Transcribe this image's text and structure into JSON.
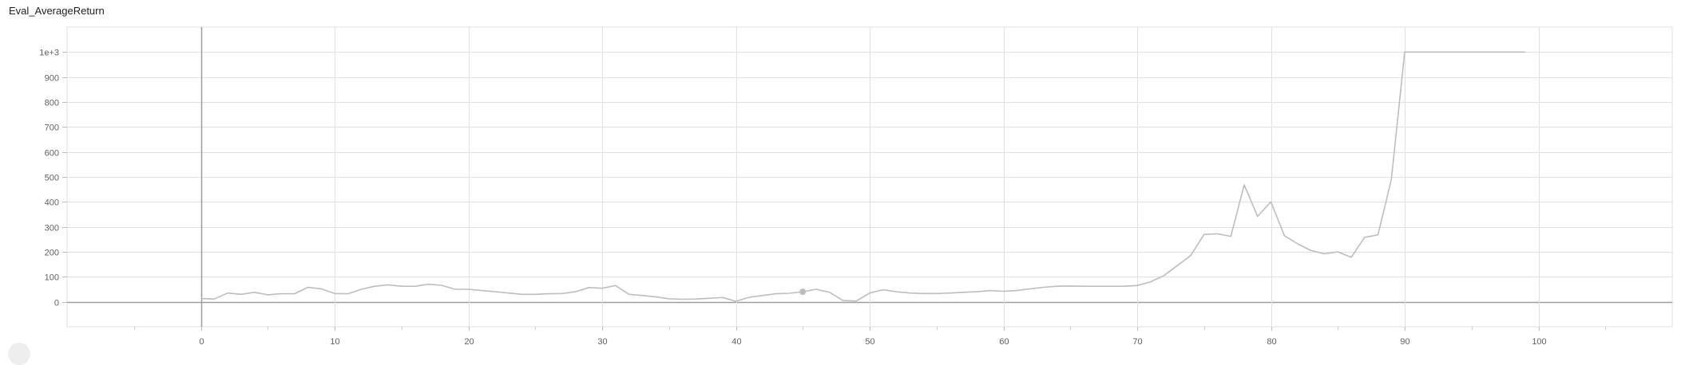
{
  "chart_data": {
    "type": "line",
    "title": "Eval_AverageReturn",
    "xlabel": "",
    "ylabel": "",
    "xlim": [
      -10,
      110
    ],
    "ylim": [
      -100,
      1100
    ],
    "x_ticks": [
      0,
      10,
      20,
      30,
      40,
      50,
      60,
      70,
      80,
      90,
      100
    ],
    "x_tick_labels": [
      "0",
      "10",
      "20",
      "30",
      "40",
      "50",
      "60",
      "70",
      "80",
      "90",
      "100"
    ],
    "y_ticks": [
      0,
      100,
      200,
      300,
      400,
      500,
      600,
      700,
      800,
      900,
      1000
    ],
    "y_tick_labels": [
      "0",
      "100",
      "200",
      "300",
      "400",
      "500",
      "600",
      "700",
      "800",
      "900",
      "1e+3"
    ],
    "grid": true,
    "series": [
      {
        "color": "#bdbdbd",
        "x": [
          0,
          1,
          2,
          3,
          4,
          5,
          6,
          7,
          8,
          9,
          10,
          11,
          12,
          13,
          14,
          15,
          16,
          17,
          18,
          19,
          20,
          21,
          22,
          23,
          24,
          25,
          26,
          27,
          28,
          29,
          30,
          31,
          32,
          33,
          34,
          35,
          36,
          37,
          38,
          39,
          40,
          41,
          42,
          43,
          44,
          45,
          46,
          47,
          48,
          49,
          50,
          51,
          52,
          53,
          54,
          55,
          56,
          57,
          58,
          59,
          60,
          61,
          62,
          63,
          64,
          65,
          66,
          67,
          68,
          69,
          70,
          71,
          72,
          73,
          74,
          75,
          76,
          77,
          78,
          79,
          80,
          81,
          82,
          83,
          84,
          85,
          86,
          87,
          88,
          89,
          90,
          91,
          92,
          93,
          94,
          95,
          96,
          97,
          98,
          99
        ],
        "values": [
          13,
          11,
          35,
          30,
          38,
          28,
          32,
          32,
          58,
          52,
          33,
          32,
          50,
          62,
          68,
          62,
          62,
          70,
          66,
          50,
          50,
          45,
          40,
          35,
          30,
          30,
          32,
          33,
          40,
          57,
          54,
          65,
          30,
          25,
          20,
          12,
          10,
          11,
          14,
          17,
          2,
          18,
          25,
          32,
          34,
          40,
          50,
          38,
          5,
          3,
          35,
          48,
          40,
          35,
          33,
          33,
          35,
          38,
          40,
          45,
          42,
          45,
          52,
          58,
          62,
          63,
          62,
          62,
          62,
          62,
          65,
          80,
          105,
          145,
          185,
          270,
          272,
          262,
          468,
          342,
          400,
          265,
          232,
          205,
          192,
          200,
          178,
          258,
          268,
          490,
          1000,
          1000,
          1000,
          1000,
          1000,
          1000,
          1000,
          1000,
          1000,
          1000
        ]
      }
    ],
    "highlight_point": {
      "x": 45,
      "y": 40
    }
  }
}
